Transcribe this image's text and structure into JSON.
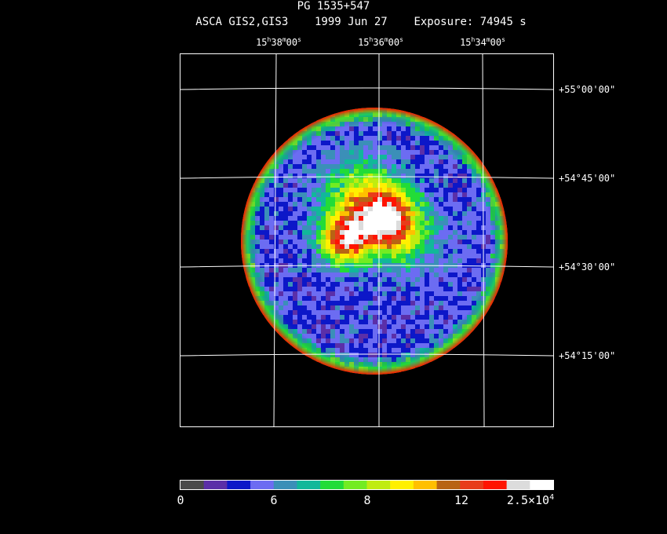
{
  "header": {
    "object": "PG 1535+547",
    "instrument": "ASCA GIS2,GIS3",
    "date": "1999 Jun 27",
    "exposure": "Exposure: 74945 s"
  },
  "axes": {
    "ra_labels": [
      {
        "h": "15",
        "m": "38",
        "s": "00"
      },
      {
        "h": "15",
        "m": "36",
        "s": "00"
      },
      {
        "h": "15",
        "m": "34",
        "s": "00"
      }
    ],
    "dec_labels": [
      "+55°00'00\"",
      "+54°45'00\"",
      "+54°30'00\"",
      "+54°15'00\""
    ]
  },
  "colorbar": {
    "colors": [
      "#4a4a4a",
      "#5b2fa8",
      "#0c17c8",
      "#6c6cf2",
      "#3b8fb8",
      "#11b89a",
      "#22dc38",
      "#73ec22",
      "#c0ec10",
      "#fff000",
      "#ffc000",
      "#b86414",
      "#e83c1a",
      "#ff1400",
      "#dcdcdc",
      "#ffffff"
    ],
    "ticks": [
      "0",
      "6",
      "8",
      "12"
    ],
    "max_base": "2.5×10",
    "max_exp": "4"
  }
}
